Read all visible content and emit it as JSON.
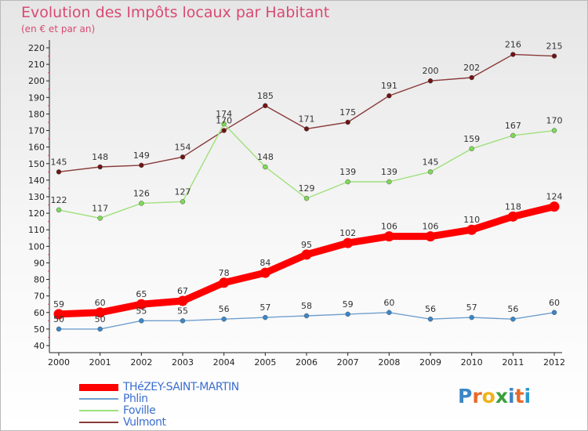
{
  "title": "Evolution des Impôts locaux par Habitant",
  "subtitle": "(en € et par an)",
  "logo": {
    "text": "Proxiti",
    "letter_colors": [
      "#3b86c6",
      "#e86a2a",
      "#f0b21b",
      "#3aa13c",
      "#3b86c6",
      "#e86a2a",
      "#2a9ad1"
    ]
  },
  "chart_data": {
    "type": "line",
    "title": "Evolution des Impôts locaux par Habitant",
    "subtitle": "(en € et par an)",
    "xlabel": "",
    "ylabel": "",
    "x": [
      "2000",
      "2001",
      "2002",
      "2003",
      "2004",
      "2005",
      "2006",
      "2007",
      "2008",
      "2009",
      "2010",
      "2011",
      "2012"
    ],
    "ylim": [
      40,
      220
    ],
    "yticks": [
      40,
      50,
      60,
      70,
      80,
      90,
      100,
      110,
      120,
      130,
      140,
      150,
      160,
      170,
      180,
      190,
      200,
      210,
      220
    ],
    "grid": false,
    "legend_position": "bottom-left",
    "series": [
      {
        "name": "THéZEY-SAINT-MARTIN",
        "color": "#ff0000",
        "marker_color": "#ff0000",
        "line_width": "thick",
        "values": [
          59,
          60,
          65,
          67,
          78,
          84,
          95,
          102,
          106,
          106,
          110,
          118,
          124
        ]
      },
      {
        "name": "Phlin",
        "color": "#6f9fce",
        "marker_color": "#3a86c8",
        "line_width": "thin",
        "values": [
          50,
          50,
          55,
          55,
          56,
          57,
          58,
          59,
          60,
          56,
          57,
          56,
          60
        ]
      },
      {
        "name": "Foville",
        "color": "#9fe07a",
        "marker_color": "#7ed957",
        "line_width": "thin",
        "values": [
          122,
          117,
          126,
          127,
          174,
          148,
          129,
          139,
          139,
          145,
          159,
          167,
          170
        ]
      },
      {
        "name": "Vulmont",
        "color": "#8a3a3a",
        "marker_color": "#6e1414",
        "line_width": "thin",
        "values": [
          145,
          148,
          149,
          154,
          170,
          185,
          171,
          175,
          191,
          200,
          202,
          216,
          215
        ]
      }
    ]
  }
}
